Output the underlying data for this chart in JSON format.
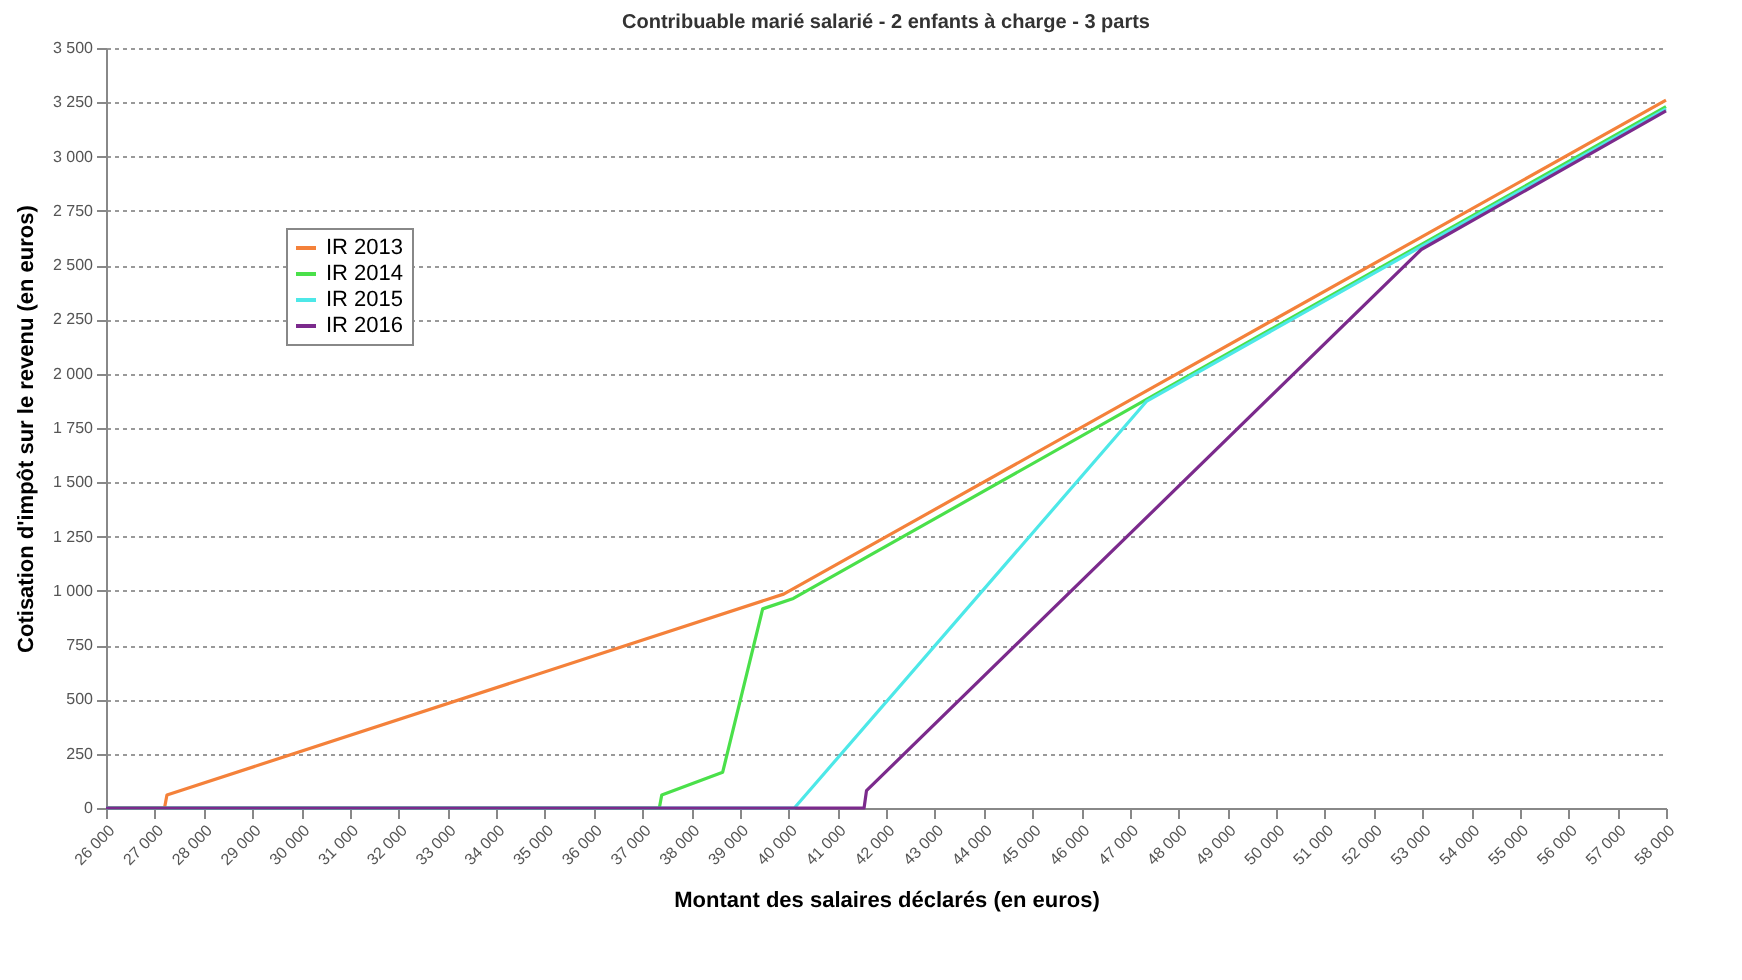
{
  "chart_data": {
    "type": "line",
    "title": "Contribuable marié salarié - 2 enfants à charge - 3 parts",
    "xlabel": "Montant des salaires déclarés (en euros)",
    "ylabel": "Cotisation d'impôt sur le revenu (en euros)",
    "xlim": [
      26000,
      58000
    ],
    "xticks": [
      {
        "value": 26000,
        "label": "26 000"
      },
      {
        "value": 27000,
        "label": "27 000"
      },
      {
        "value": 28000,
        "label": "28 000"
      },
      {
        "value": 29000,
        "label": "29 000"
      },
      {
        "value": 30000,
        "label": "30 000"
      },
      {
        "value": 31000,
        "label": "31 000"
      },
      {
        "value": 32000,
        "label": "32 000"
      },
      {
        "value": 33000,
        "label": "33 000"
      },
      {
        "value": 34000,
        "label": "34 000"
      },
      {
        "value": 35000,
        "label": "35 000"
      },
      {
        "value": 36000,
        "label": "36 000"
      },
      {
        "value": 37000,
        "label": "37 000"
      },
      {
        "value": 38000,
        "label": "38 000"
      },
      {
        "value": 39000,
        "label": "39 000"
      },
      {
        "value": 40000,
        "label": "40 000"
      },
      {
        "value": 41000,
        "label": "41 000"
      },
      {
        "value": 42000,
        "label": "42 000"
      },
      {
        "value": 43000,
        "label": "43 000"
      },
      {
        "value": 44000,
        "label": "44 000"
      },
      {
        "value": 45000,
        "label": "45 000"
      },
      {
        "value": 46000,
        "label": "46 000"
      },
      {
        "value": 47000,
        "label": "47 000"
      },
      {
        "value": 48000,
        "label": "48 000"
      },
      {
        "value": 49000,
        "label": "49 000"
      },
      {
        "value": 50000,
        "label": "50 000"
      },
      {
        "value": 51000,
        "label": "51 000"
      },
      {
        "value": 52000,
        "label": "52 000"
      },
      {
        "value": 53000,
        "label": "53 000"
      },
      {
        "value": 54000,
        "label": "54 000"
      },
      {
        "value": 55000,
        "label": "55 000"
      },
      {
        "value": 56000,
        "label": "56 000"
      },
      {
        "value": 57000,
        "label": "57 000"
      },
      {
        "value": 58000,
        "label": "58 000"
      }
    ],
    "ylim": [
      0,
      3500
    ],
    "yticks": [
      0,
      250,
      500,
      750,
      {
        "value": 1000,
        "label": "1 000"
      },
      {
        "value": 1250,
        "label": "1 250"
      },
      {
        "value": 1500,
        "label": "1 500"
      },
      {
        "value": 1750,
        "label": "1 750"
      },
      {
        "value": 2000,
        "label": "2 000"
      },
      {
        "value": 2250,
        "label": "2 250"
      },
      {
        "value": 2500,
        "label": "2 500"
      },
      {
        "value": 2750,
        "label": "2 750"
      },
      {
        "value": 3000,
        "label": "3 000"
      },
      {
        "value": 3250,
        "label": "3 250"
      },
      {
        "value": 3500,
        "label": "3 500"
      }
    ],
    "grid": "y",
    "legend": "top left",
    "line_style": "solid",
    "marker": "none",
    "series": [
      {
        "name": "IR 2013",
        "color": "#f4813a",
        "x": [
          26000,
          27200,
          27250,
          39900,
          58000
        ],
        "values": [
          0,
          0,
          60,
          985,
          3260
        ]
      },
      {
        "name": "IR 2014",
        "color": "#4ae04a",
        "x": [
          26000,
          37350,
          37400,
          38650,
          39470,
          40100,
          58000
        ],
        "values": [
          0,
          0,
          60,
          165,
          917,
          965,
          3230
        ]
      },
      {
        "name": "IR 2015",
        "color": "#4de8e8",
        "x": [
          26000,
          40120,
          47350,
          58000
        ],
        "values": [
          0,
          0,
          1874,
          3220
        ]
      },
      {
        "name": "IR 2016",
        "color": "#7b2a8c",
        "x": [
          26000,
          41550,
          41600,
          52980,
          58000
        ],
        "values": [
          0,
          0,
          80,
          2572,
          3210
        ]
      }
    ]
  }
}
